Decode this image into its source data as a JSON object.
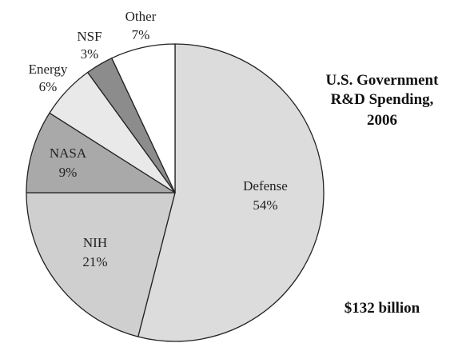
{
  "chart_data": {
    "type": "pie",
    "title": "U.S. Government R&D Spending, 2006",
    "title_lines": [
      "U.S. Government",
      "R&D Spending,",
      "2006"
    ],
    "total_label": "$132 billion",
    "start_angle_deg": 0,
    "direction": "clockwise",
    "slices": [
      {
        "name": "Defense",
        "value": 54,
        "label": "54%",
        "color": "#dcdcdc"
      },
      {
        "name": "NIH",
        "value": 21,
        "label": "21%",
        "color": "#cfcfcf"
      },
      {
        "name": "NASA",
        "value": 9,
        "label": "9%",
        "color": "#a9a9a9"
      },
      {
        "name": "Energy",
        "value": 6,
        "label": "6%",
        "color": "#e9e9e9"
      },
      {
        "name": "NSF",
        "value": 3,
        "label": "3%",
        "color": "#8c8c8c"
      },
      {
        "name": "Other",
        "value": 7,
        "label": "7%",
        "color": "#ffffff"
      }
    ],
    "label_placement": {
      "Defense": "inside",
      "NIH": "inside",
      "NASA": "inside",
      "Energy": "outside",
      "NSF": "outside",
      "Other": "outside"
    },
    "stroke_color": "#222222"
  }
}
